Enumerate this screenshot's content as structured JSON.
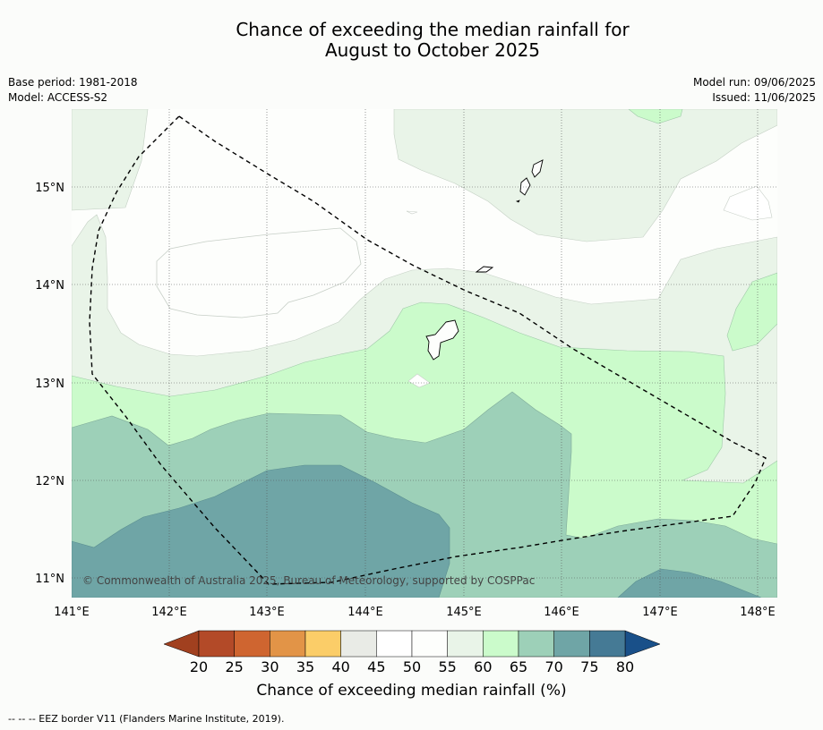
{
  "title_line1": "Chance of exceeding the median rainfall for",
  "title_line2": "August to October 2025",
  "base_period": "Base period: 1981-2018",
  "model": "Model: ACCESS-S2",
  "model_run": "Model run: 09/06/2025",
  "issued": "Issued: 11/06/2025",
  "copyright": "© Commonwealth of Australia 2025, Bureau of Meteorology, supported by COSPPac",
  "colorbar_label": "Chance of exceeding median rainfall (%)",
  "footer": "--  --  -- EEZ border V11 (Flanders Marine Institute, 2019).",
  "lon_labels": [
    "141°E",
    "142°E",
    "143°E",
    "144°E",
    "145°E",
    "146°E",
    "147°E",
    "148°E"
  ],
  "lat_labels": [
    "15°N",
    "14°N",
    "13°N",
    "12°N",
    "11°N"
  ],
  "colorbar": {
    "ticks": [
      "20",
      "25",
      "30",
      "35",
      "40",
      "45",
      "50",
      "55",
      "60",
      "65",
      "70",
      "75",
      "80"
    ],
    "colors": [
      "#b34a28",
      "#cf6530",
      "#e29447",
      "#fbcd68",
      "#e9ebe6",
      "#ffffff",
      "#fdfefc",
      "#e9f4e8",
      "#cbfbcb",
      "#9dd0b8",
      "#6fa5a6",
      "#457a95"
    ],
    "under_color": "#a1401f",
    "over_color": "#195089"
  },
  "chart_data": {
    "type": "map",
    "lon_range": [
      141,
      148.2
    ],
    "lat_range": [
      10.8,
      15.8
    ],
    "grid": true
  }
}
